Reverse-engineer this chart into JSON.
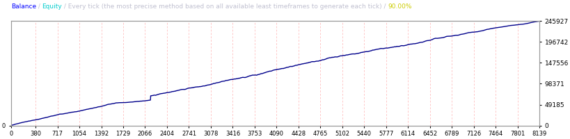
{
  "bg_color": "#ffffff",
  "plot_bg_color": "#ffffff",
  "line_color": "#00008b",
  "grid_color": "#ffb0b0",
  "x_ticks": [
    0,
    380,
    717,
    1054,
    1392,
    1729,
    2066,
    2404,
    2741,
    3078,
    3416,
    3753,
    4090,
    4428,
    4765,
    5102,
    5440,
    5777,
    6114,
    6452,
    6789,
    7126,
    7464,
    7801,
    8139
  ],
  "y_ticks_right": [
    0,
    49185,
    98371,
    147556,
    196742,
    245927
  ],
  "y_min": 0,
  "y_max": 245927,
  "x_min": 0,
  "x_max": 8139,
  "line_width": 1.0,
  "title_segments": [
    [
      "Balance",
      "#0000ff"
    ],
    [
      " / ",
      "#c0c0d0"
    ],
    [
      "Equity",
      "#00cccc"
    ],
    [
      " / Every tick (the most precise method based on all available least timeframes to generate each tick) / ",
      "#c0c0d0"
    ],
    [
      "90.00%",
      "#cccc00"
    ]
  ],
  "title_fontsize": 6.5
}
